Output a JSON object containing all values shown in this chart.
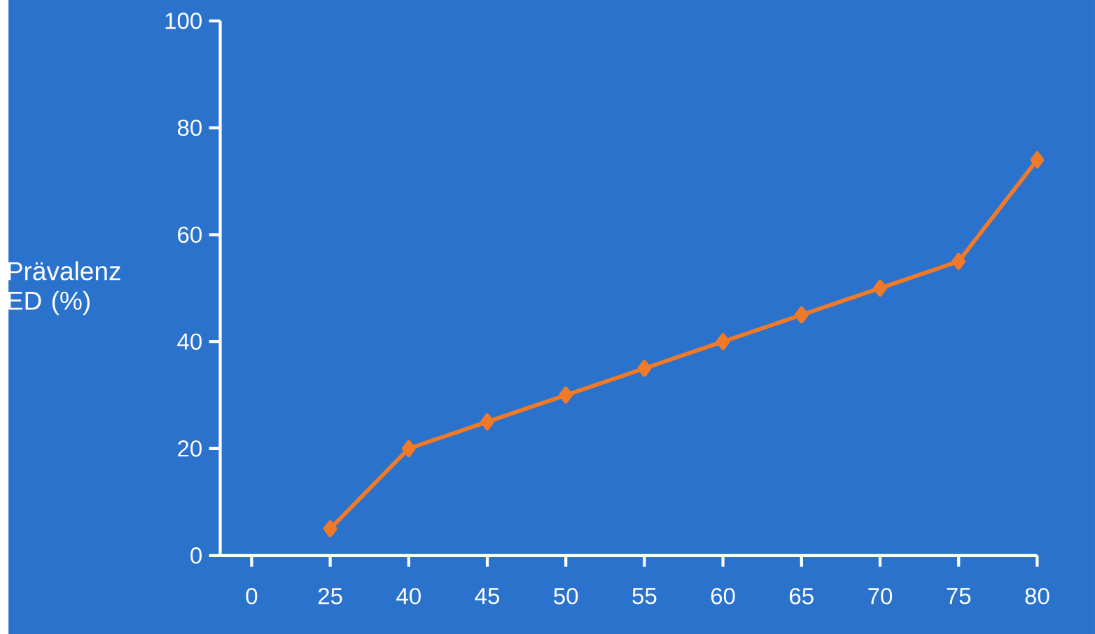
{
  "chart_data": {
    "type": "line",
    "ylabel": "Prävalenz ED (%)",
    "categories": [
      "0",
      "25",
      "40",
      "45",
      "50",
      "55",
      "60",
      "65",
      "70",
      "75",
      "80"
    ],
    "series": [
      {
        "color": "#f07a28",
        "values": [
          null,
          5,
          20,
          25,
          30,
          35,
          40,
          45,
          50,
          55,
          74
        ]
      }
    ],
    "ylim": [
      0,
      100
    ],
    "yticks": [
      0,
      20,
      40,
      60,
      80,
      100
    ],
    "marker": "diamond",
    "line_style": "solid"
  }
}
